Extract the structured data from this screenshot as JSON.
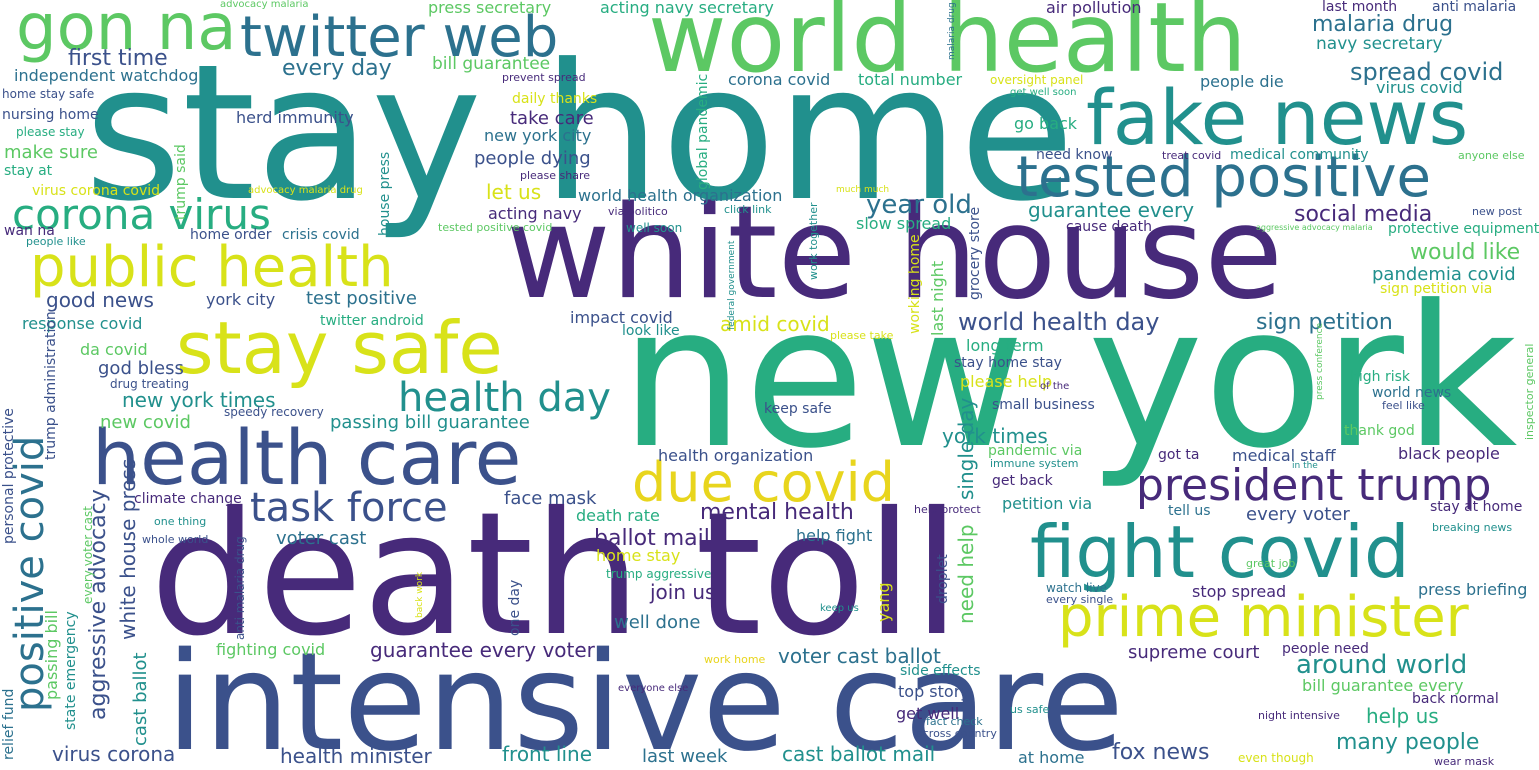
{
  "palette": {
    "purple": "#472a7a",
    "indigo": "#3b518b",
    "blue": "#2c718e",
    "teal": "#21908d",
    "green": "#27ad81",
    "lime": "#5cc863",
    "yellow": "#d8e219",
    "gold": "#e8d51d"
  },
  "words": [
    "stay home",
    "white house",
    "new york",
    "death toll",
    "intensive care",
    "world health",
    "fake news",
    "tested positive",
    "twitter web",
    "gon na",
    "stay safe",
    "public health",
    "corona virus",
    "health care",
    "fight covid",
    "prime minister",
    "president trump",
    "due covid",
    "task force",
    "positive covid",
    "health day",
    "social media",
    "year old",
    "guarantee every",
    "world health day",
    "spread covid",
    "malaria drug",
    "navy secretary",
    "anti malaria",
    "last month",
    "air pollution",
    "press secretary",
    "acting navy secretary",
    "first time",
    "every day",
    "bill guarantee",
    "independent watchdog",
    "nursing home",
    "home stay safe",
    "please stay",
    "make sure",
    "stay at",
    "herd immunity",
    "corona covid",
    "total number",
    "oversight panel",
    "people die",
    "virus covid",
    "go back",
    "need know",
    "treat covid",
    "medical community",
    "anyone else",
    "new post",
    "protective equipment",
    "would like",
    "pandemia covid",
    "sign petition via",
    "sign petition",
    "take care",
    "new york city",
    "people dying",
    "let us",
    "world health organization",
    "acting navy",
    "via politico",
    "click link",
    "slow spread",
    "cause death",
    "home order",
    "crisis covid",
    "york city",
    "test positive",
    "good news",
    "response covid",
    "twitter android",
    "impact covid",
    "look like",
    "amid covid",
    "please take",
    "long term",
    "stay home stay",
    "please help",
    "small business",
    "york times",
    "pandemic via",
    "immune system",
    "got ta",
    "medical staff",
    "black people",
    "get back",
    "petition via",
    "tell us",
    "every voter",
    "stay at home",
    "breaking news",
    "new york times",
    "new covid",
    "god bless",
    "da covid",
    "drug treating",
    "speedy recovery",
    "passing bill guarantee",
    "health organization",
    "face mask",
    "mental health",
    "climate change",
    "one thing",
    "whole world",
    "death rate",
    "voter cast",
    "ballot mail",
    "help fight",
    "help protect",
    "home stay",
    "trump aggressive",
    "join us",
    "well done",
    "guarantee every voter",
    "fighting covid",
    "work home",
    "everyone else",
    "voter cast ballot",
    "side effects",
    "top story",
    "get well",
    "fact check",
    "across country",
    "us safe",
    "at home",
    "night intensive",
    "fox news",
    "even though",
    "many people",
    "help us",
    "back normal",
    "bill guarantee every",
    "around world",
    "supreme court",
    "people need",
    "press briefing",
    "stop spread",
    "watch live",
    "every single",
    "great job",
    "keep us",
    "virus corona",
    "health minister",
    "front line",
    "last week",
    "cast ballot mail",
    "wan na",
    "people like",
    "virus corona covid",
    "daily thanks",
    "prevent spread",
    "well soon",
    "get well soon",
    "much much",
    "aggressive advocacy malaria",
    "advocacy malaria drug",
    "tested positive covid",
    "please share",
    "world news",
    "high risk",
    "feel like",
    "thank god",
    "in the",
    "keep safe",
    "of the",
    "wear mask",
    "advocacy malaria",
    "malaria drug treating",
    "trump said",
    "house press",
    "global pandemic",
    "federal government",
    "work together",
    "grocery store",
    "last night",
    "working home",
    "single day",
    "need help",
    "yang",
    "droplet",
    "one day",
    "back work",
    "anti malaria drug",
    "white house press",
    "aggressive advocacy",
    "cast ballot",
    "passing bill",
    "state emergency",
    "every voter cast",
    "trump administration",
    "personal protective",
    "relief fund",
    "inspector general",
    "press conference",
    "night intensive care",
    "trump aggressive advocacy"
  ]
}
